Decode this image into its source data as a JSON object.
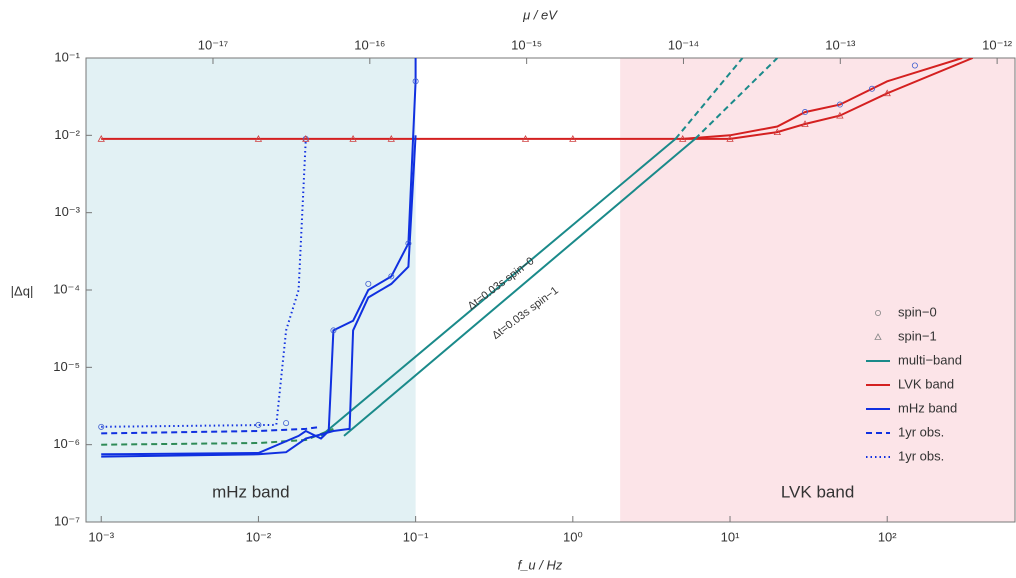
{
  "chart_data": {
    "type": "line",
    "xlabel": "f_u / Hz",
    "ylabel": "|Δq|",
    "x2label": "μ / eV",
    "log_x": true,
    "log_y": true,
    "xlim": [
      0.0008,
      650
    ],
    "ylim": [
      1e-07,
      0.1
    ],
    "x2lim": [
      1.55e-18,
      1.3e-12
    ],
    "xticks": [
      {
        "value": 0.001,
        "label": "10⁻³"
      },
      {
        "value": 0.01,
        "label": "10⁻²"
      },
      {
        "value": 0.1,
        "label": "10⁻¹"
      },
      {
        "value": 1,
        "label": "10⁰"
      },
      {
        "value": 10,
        "label": "10¹"
      },
      {
        "value": 100,
        "label": "10²"
      }
    ],
    "yticks": [
      {
        "value": 1e-07,
        "label": "10⁻⁷"
      },
      {
        "value": 1e-06,
        "label": "10⁻⁶"
      },
      {
        "value": 1e-05,
        "label": "10⁻⁵"
      },
      {
        "value": 0.0001,
        "label": "10⁻⁴"
      },
      {
        "value": 0.001,
        "label": "10⁻³"
      },
      {
        "value": 0.01,
        "label": "10⁻²"
      },
      {
        "value": 0.1,
        "label": "10⁻¹"
      }
    ],
    "x2ticks": [
      {
        "value": 1e-17,
        "label": "10⁻¹⁷"
      },
      {
        "value": 1e-16,
        "label": "10⁻¹⁶"
      },
      {
        "value": 1e-15,
        "label": "10⁻¹⁵"
      },
      {
        "value": 1e-14,
        "label": "10⁻¹⁴"
      },
      {
        "value": 1e-13,
        "label": "10⁻¹³"
      },
      {
        "value": 1e-12,
        "label": "10⁻¹²"
      }
    ],
    "bands": [
      {
        "label": "mHz band",
        "x": [
          0.0008,
          0.1
        ],
        "color": "#e2f1f4"
      },
      {
        "label": "LVK band",
        "x": [
          2,
          650
        ],
        "color": "#fce4e8"
      }
    ],
    "series": [
      {
        "color": "#d42020",
        "style": "solid",
        "x": [
          0.001,
          1,
          5,
          10,
          20,
          30,
          50,
          100,
          300
        ],
        "values": [
          0.009,
          0.009,
          0.009,
          0.01,
          0.013,
          0.02,
          0.025,
          0.05,
          0.1
        ]
      },
      {
        "color": "#d42020",
        "style": "solid",
        "x": [
          5,
          10,
          20,
          30,
          50,
          100,
          350
        ],
        "values": [
          0.009,
          0.009,
          0.011,
          0.014,
          0.018,
          0.035,
          0.1
        ]
      },
      {
        "color": "#1a8a8a",
        "style": "solid",
        "x": [
          0.025,
          4.5
        ],
        "values": [
          1.3e-06,
          0.009
        ]
      },
      {
        "color": "#1a8a8a",
        "style": "dashed",
        "x": [
          4.5,
          12
        ],
        "values": [
          0.009,
          0.1
        ]
      },
      {
        "color": "#1a8a8a",
        "style": "solid",
        "x": [
          0.035,
          6
        ],
        "values": [
          1.3e-06,
          0.009
        ]
      },
      {
        "color": "#1a8a8a",
        "style": "dashed",
        "x": [
          6,
          20
        ],
        "values": [
          0.009,
          0.1
        ]
      },
      {
        "color": "#2e8b57",
        "style": "dashed",
        "x": [
          0.001,
          0.01,
          0.02,
          0.03
        ],
        "values": [
          1e-06,
          1.05e-06,
          1.15e-06,
          1.6e-06
        ]
      },
      {
        "color": "#1030e0",
        "style": "dashed",
        "x": [
          0.001,
          0.01,
          0.02,
          0.025
        ],
        "values": [
          1.4e-06,
          1.5e-06,
          1.6e-06,
          1.7e-06
        ]
      },
      {
        "color": "#1030e0",
        "style": "dotted",
        "x": [
          0.001,
          0.013,
          0.015,
          0.018,
          0.02
        ],
        "values": [
          1.7e-06,
          1.8e-06,
          3e-05,
          0.0001,
          0.009
        ]
      },
      {
        "color": "#1030e0",
        "style": "solid",
        "x": [
          0.001,
          0.01,
          0.018,
          0.02,
          0.025,
          0.028,
          0.03,
          0.04,
          0.05,
          0.07,
          0.09,
          0.1,
          0.1
        ],
        "values": [
          7.5e-07,
          7.8e-07,
          1.3e-06,
          1.5e-06,
          1.2e-06,
          1.5e-06,
          3e-05,
          4e-05,
          0.0001,
          0.00015,
          0.0004,
          0.05,
          0.1
        ]
      },
      {
        "color": "#1030e0",
        "style": "solid",
        "x": [
          0.001,
          0.01,
          0.015,
          0.02,
          0.03,
          0.038,
          0.04,
          0.05,
          0.07,
          0.09,
          0.1
        ],
        "values": [
          7e-07,
          7.5e-07,
          8e-07,
          1.2e-06,
          1.5e-06,
          1.6e-06,
          3e-05,
          8e-05,
          0.00012,
          0.0002,
          0.01
        ]
      }
    ],
    "markers": [
      {
        "marker": "circle",
        "color": "#4060d0",
        "x": [
          0.001,
          0.01,
          0.015,
          0.02,
          0.03,
          0.05,
          0.07,
          0.09,
          0.1,
          30,
          50,
          80,
          150
        ],
        "values": [
          1.7e-06,
          1.8e-06,
          1.9e-06,
          0.009,
          3e-05,
          0.00012,
          0.00015,
          0.0004,
          0.05,
          0.02,
          0.025,
          0.04,
          0.08
        ]
      },
      {
        "marker": "triangle",
        "color": "#d04040",
        "x": [
          0.001,
          0.01,
          0.02,
          0.04,
          0.07,
          0.5,
          1,
          5,
          10,
          20,
          30,
          50,
          100
        ],
        "values": [
          0.009,
          0.009,
          0.009,
          0.009,
          0.009,
          0.009,
          0.009,
          0.009,
          0.009,
          0.011,
          0.014,
          0.018,
          0.035
        ]
      }
    ],
    "annotations": [
      {
        "text": "Δt=0.03s spin−0",
        "x": 0.35,
        "y": 0.00012
      },
      {
        "text": "Δt=0.03s spin−1",
        "x": 0.5,
        "y": 5e-05
      }
    ],
    "legend_position": "lower right",
    "legend": [
      {
        "label": "spin−0",
        "marker": "circle",
        "color": "#888888"
      },
      {
        "label": "spin−1",
        "marker": "triangle",
        "color": "#888888"
      },
      {
        "label": "multi−band",
        "style": "solid",
        "color": "#1a8a8a"
      },
      {
        "label": "LVK band",
        "style": "solid",
        "color": "#d42020"
      },
      {
        "label": "mHz band",
        "style": "solid",
        "color": "#1030e0"
      },
      {
        "label": "1yr obs.",
        "style": "dashed",
        "color": "#1030e0"
      },
      {
        "label": "1yr obs.",
        "style": "dotted",
        "color": "#1030e0"
      }
    ]
  }
}
